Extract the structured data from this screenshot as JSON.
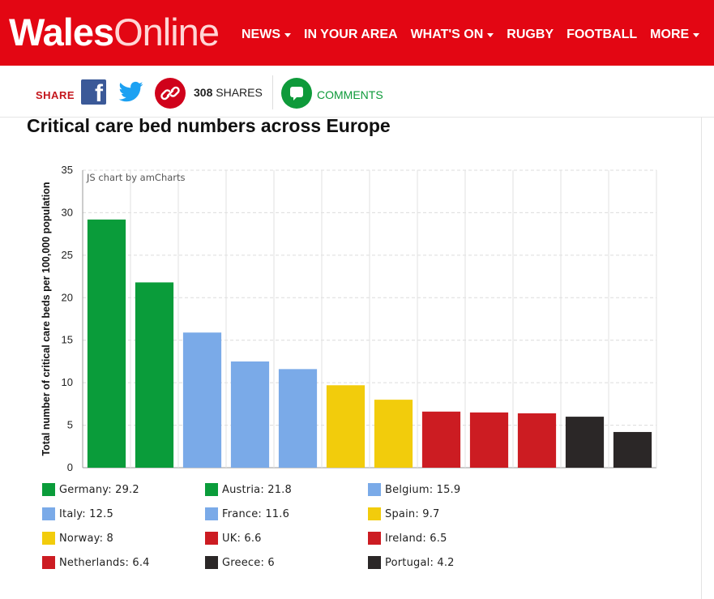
{
  "header": {
    "logo_bold": "Wales",
    "logo_light": "Online",
    "nav": [
      {
        "label": "NEWS",
        "caret": true
      },
      {
        "label": "IN YOUR AREA",
        "caret": false
      },
      {
        "label": "WHAT'S ON",
        "caret": true
      },
      {
        "label": "RUGBY",
        "caret": false
      },
      {
        "label": "FOOTBALL",
        "caret": false
      },
      {
        "label": "MORE",
        "caret": true
      }
    ]
  },
  "sharebar": {
    "share_label": "SHARE",
    "share_count_num": "308",
    "share_count_text": "SHARES",
    "comments_label": "COMMENTS",
    "icons": [
      "facebook-icon",
      "twitter-icon",
      "link-icon",
      "comment-icon"
    ]
  },
  "article": {
    "chart_title": "Critical care bed numbers across Europe"
  },
  "chart_data": {
    "type": "bar",
    "title": "",
    "credit": "JS chart by amCharts",
    "ylabel": "Total number of critical care beds per 100,000 population",
    "xlabel": "",
    "ylim": [
      0,
      35
    ],
    "yticks": [
      0,
      5,
      10,
      15,
      20,
      25,
      30,
      35
    ],
    "grid": true,
    "legend_position": "bottom",
    "categories": [
      "Germany",
      "Austria",
      "Belgium",
      "Italy",
      "France",
      "Spain",
      "Norway",
      "UK",
      "Ireland",
      "Netherlands",
      "Greece",
      "Portugal"
    ],
    "values": [
      29.2,
      21.8,
      15.9,
      12.5,
      11.6,
      9.7,
      8,
      6.6,
      6.5,
      6.4,
      6,
      4.2
    ],
    "colors": [
      "#0a9c3a",
      "#0a9c3a",
      "#7aaae8",
      "#7aaae8",
      "#7aaae8",
      "#f2cc0c",
      "#f2cc0c",
      "#cc1c22",
      "#cc1c22",
      "#cc1c22",
      "#2b2727",
      "#2b2727"
    ],
    "legend": [
      {
        "label": "Germany: 29.2",
        "color": "#0a9c3a"
      },
      {
        "label": "Austria: 21.8",
        "color": "#0a9c3a"
      },
      {
        "label": "Belgium: 15.9",
        "color": "#7aaae8"
      },
      {
        "label": "Italy: 12.5",
        "color": "#7aaae8"
      },
      {
        "label": "France: 11.6",
        "color": "#7aaae8"
      },
      {
        "label": "Spain: 9.7",
        "color": "#f2cc0c"
      },
      {
        "label": "Norway: 8",
        "color": "#f2cc0c"
      },
      {
        "label": "UK: 6.6",
        "color": "#cc1c22"
      },
      {
        "label": "Ireland: 6.5",
        "color": "#cc1c22"
      },
      {
        "label": "Netherlands: 6.4",
        "color": "#cc1c22"
      },
      {
        "label": "Greece: 6",
        "color": "#2b2727"
      },
      {
        "label": "Portugal: 4.2",
        "color": "#2b2727"
      }
    ]
  },
  "colors": {
    "brand_red": "#e30613",
    "share_red": "#c4161c",
    "comment_green": "#0e9a3a",
    "facebook_blue": "#3b5998",
    "twitter_blue": "#1da1f2"
  }
}
